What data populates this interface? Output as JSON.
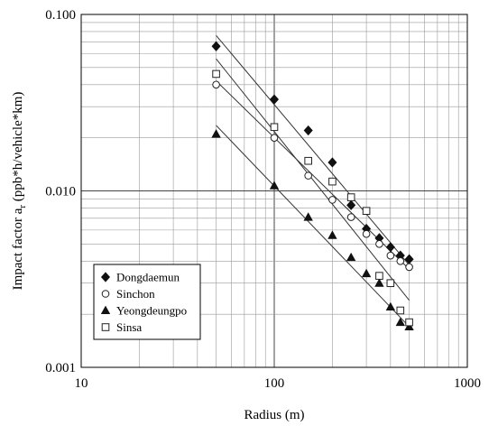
{
  "chart_data": {
    "type": "scatter",
    "title": "",
    "xlabel": "Radius (m)",
    "ylabel_main": "Impact factor a",
    "ylabel_sub": "r",
    "ylabel_rest": " (ppb*h/vehicle*km)",
    "xscale": "log",
    "yscale": "log",
    "xlim": [
      10,
      1000
    ],
    "ylim": [
      0.001,
      0.1
    ],
    "x_ticks": [
      {
        "value": 10,
        "label": "10"
      },
      {
        "value": 100,
        "label": "100"
      },
      {
        "value": 1000,
        "label": "1000"
      }
    ],
    "y_ticks": [
      {
        "value": 0.001,
        "label": "0.001"
      },
      {
        "value": 0.01,
        "label": "0.010"
      },
      {
        "value": 0.1,
        "label": "0.100"
      }
    ],
    "grid": true,
    "legend_position": "bottom-left",
    "series": [
      {
        "name": "Dongdaemun",
        "marker": "diamond-filled",
        "x": [
          50,
          100,
          150,
          200,
          250,
          300,
          350,
          400,
          450,
          500
        ],
        "y": [
          0.066,
          0.033,
          0.022,
          0.0145,
          0.0083,
          0.0061,
          0.0054,
          0.0048,
          0.0043,
          0.0041
        ],
        "trend": {
          "x": [
            50,
            500
          ],
          "y": [
            0.076,
            0.0038
          ]
        }
      },
      {
        "name": "Sinchon",
        "marker": "circle-open",
        "x": [
          50,
          100,
          150,
          200,
          250,
          300,
          350,
          400,
          450,
          500
        ],
        "y": [
          0.04,
          0.02,
          0.0122,
          0.0089,
          0.0071,
          0.0057,
          0.005,
          0.0043,
          0.004,
          0.0037
        ],
        "trend": {
          "x": [
            50,
            500
          ],
          "y": [
            0.042,
            0.0036
          ]
        }
      },
      {
        "name": "Yeongdeungpo",
        "marker": "triangle-filled",
        "x": [
          50,
          100,
          150,
          200,
          250,
          300,
          350,
          400,
          450,
          500
        ],
        "y": [
          0.021,
          0.0107,
          0.0071,
          0.0056,
          0.0042,
          0.0034,
          0.003,
          0.0022,
          0.0018,
          0.0017
        ],
        "trend": {
          "x": [
            50,
            500
          ],
          "y": [
            0.0235,
            0.0017
          ]
        }
      },
      {
        "name": "Sinsa",
        "marker": "square-open",
        "x": [
          50,
          100,
          150,
          200,
          250,
          300,
          350,
          400,
          450,
          500
        ],
        "y": [
          0.046,
          0.023,
          0.0148,
          0.0113,
          0.0092,
          0.0077,
          0.0033,
          0.003,
          0.0021,
          0.0018
        ],
        "trend": {
          "x": [
            50,
            500
          ],
          "y": [
            0.056,
            0.0024
          ]
        }
      }
    ]
  }
}
